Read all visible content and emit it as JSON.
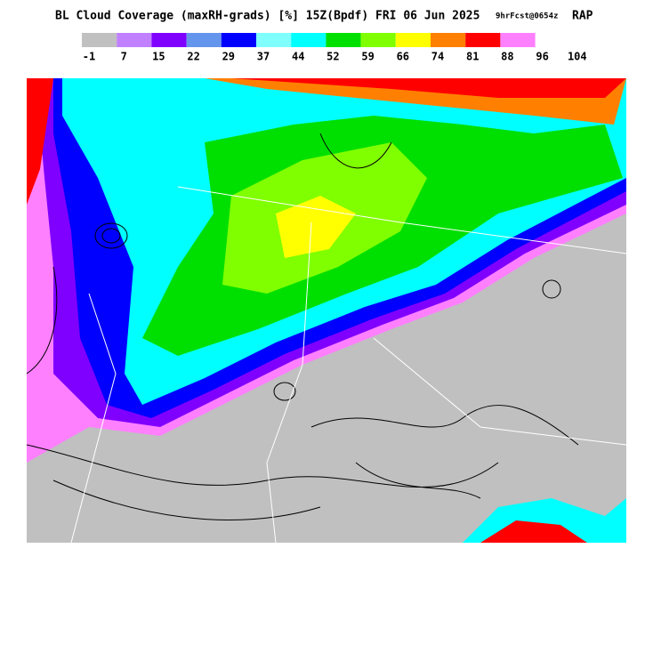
{
  "header": {
    "title": "BL Cloud Coverage (maxRH-grads) [%] 15Z(Bpdf) FRI 06 Jun 2025",
    "forecast": "9hrFcst@0654z",
    "model": "RAP"
  },
  "legend": {
    "colors": [
      "#c0c0c0",
      "#c080ff",
      "#8000ff",
      "#6495ed",
      "#0000ff",
      "#80ffff",
      "#00ffff",
      "#00e000",
      "#80ff00",
      "#ffff00",
      "#ff8000",
      "#ff0000",
      "#ff80ff"
    ],
    "labels": [
      -1,
      7,
      15,
      22,
      29,
      37,
      44,
      52,
      59,
      66,
      74,
      81,
      88,
      96,
      104
    ]
  }
}
